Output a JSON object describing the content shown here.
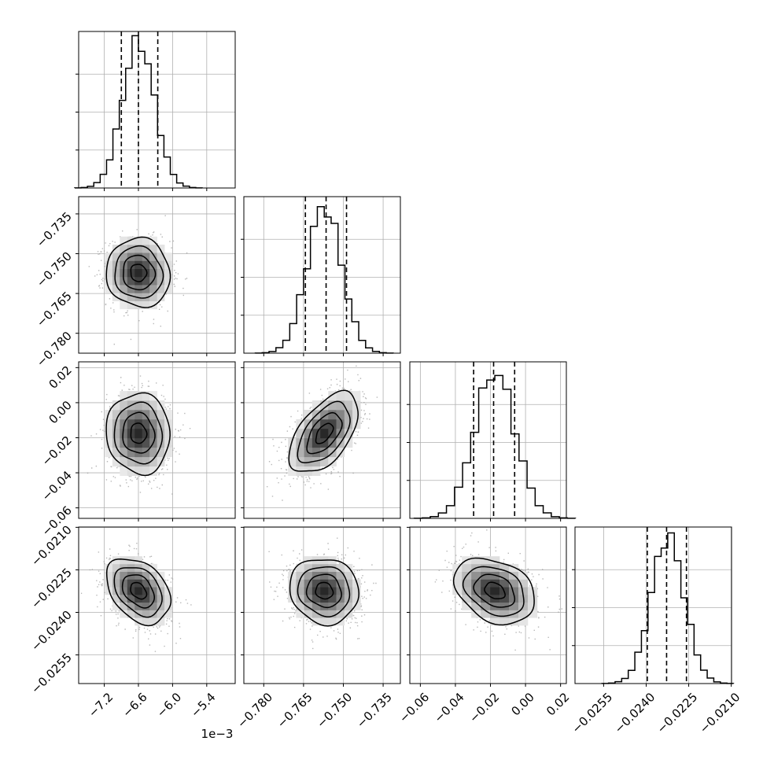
{
  "chart_data": {
    "type": "corner",
    "offset_label": "1e−3",
    "colors": {
      "frame": "#000000",
      "grid": "#b0b0b0",
      "scatter": "#a0a0a0",
      "contour": "#000000",
      "histogram": "#000000"
    },
    "grid": true,
    "parameters": [
      {
        "range": [
          -7.65,
          -4.9
        ],
        "ticks": [
          -7.2,
          -6.6,
          -6.0,
          -5.4
        ],
        "tick_labels": [
          "−7.2",
          "−6.6",
          "−6.0",
          "−5.4"
        ],
        "mean": -6.6,
        "sd": 0.28,
        "quantiles": [
          -6.9,
          -6.6,
          -6.26
        ]
      },
      {
        "range": [
          -0.7875,
          -0.7285
        ],
        "ticks": [
          -0.78,
          -0.765,
          -0.75,
          -0.735
        ],
        "tick_labels": [
          "−0.780",
          "−0.765",
          "−0.750",
          "−0.735"
        ],
        "mean": -0.7572,
        "sd": 0.0065,
        "quantiles": [
          -0.7643,
          -0.7565,
          -0.7488
        ]
      },
      {
        "range": [
          -0.066,
          0.0233
        ],
        "ticks": [
          -0.06,
          -0.04,
          -0.02,
          0.0,
          0.02
        ],
        "tick_labels": [
          "−0.06",
          "−0.04",
          "−0.02",
          "0.00",
          "0.02"
        ],
        "mean": -0.0175,
        "sd": 0.0115,
        "quantiles": [
          -0.0296,
          -0.0182,
          -0.0062
        ]
      },
      {
        "range": [
          -0.02651,
          -0.02099
        ],
        "ticks": [
          -0.0255,
          -0.024,
          -0.0225,
          -0.021
        ],
        "tick_labels": [
          "−0.0255",
          "−0.0240",
          "−0.0225",
          "−0.0210"
        ],
        "mean": -0.02324,
        "sd": 0.00058,
        "quantiles": [
          -0.02396,
          -0.02328,
          -0.02258
        ]
      }
    ],
    "correlations": [
      {
        "row": 1,
        "col": 0,
        "rho": -0.05
      },
      {
        "row": 2,
        "col": 0,
        "rho": -0.05
      },
      {
        "row": 2,
        "col": 1,
        "rho": 0.55
      },
      {
        "row": 3,
        "col": 0,
        "rho": -0.35
      },
      {
        "row": 3,
        "col": 1,
        "rho": -0.08
      },
      {
        "row": 3,
        "col": 2,
        "rho": -0.3
      }
    ]
  }
}
